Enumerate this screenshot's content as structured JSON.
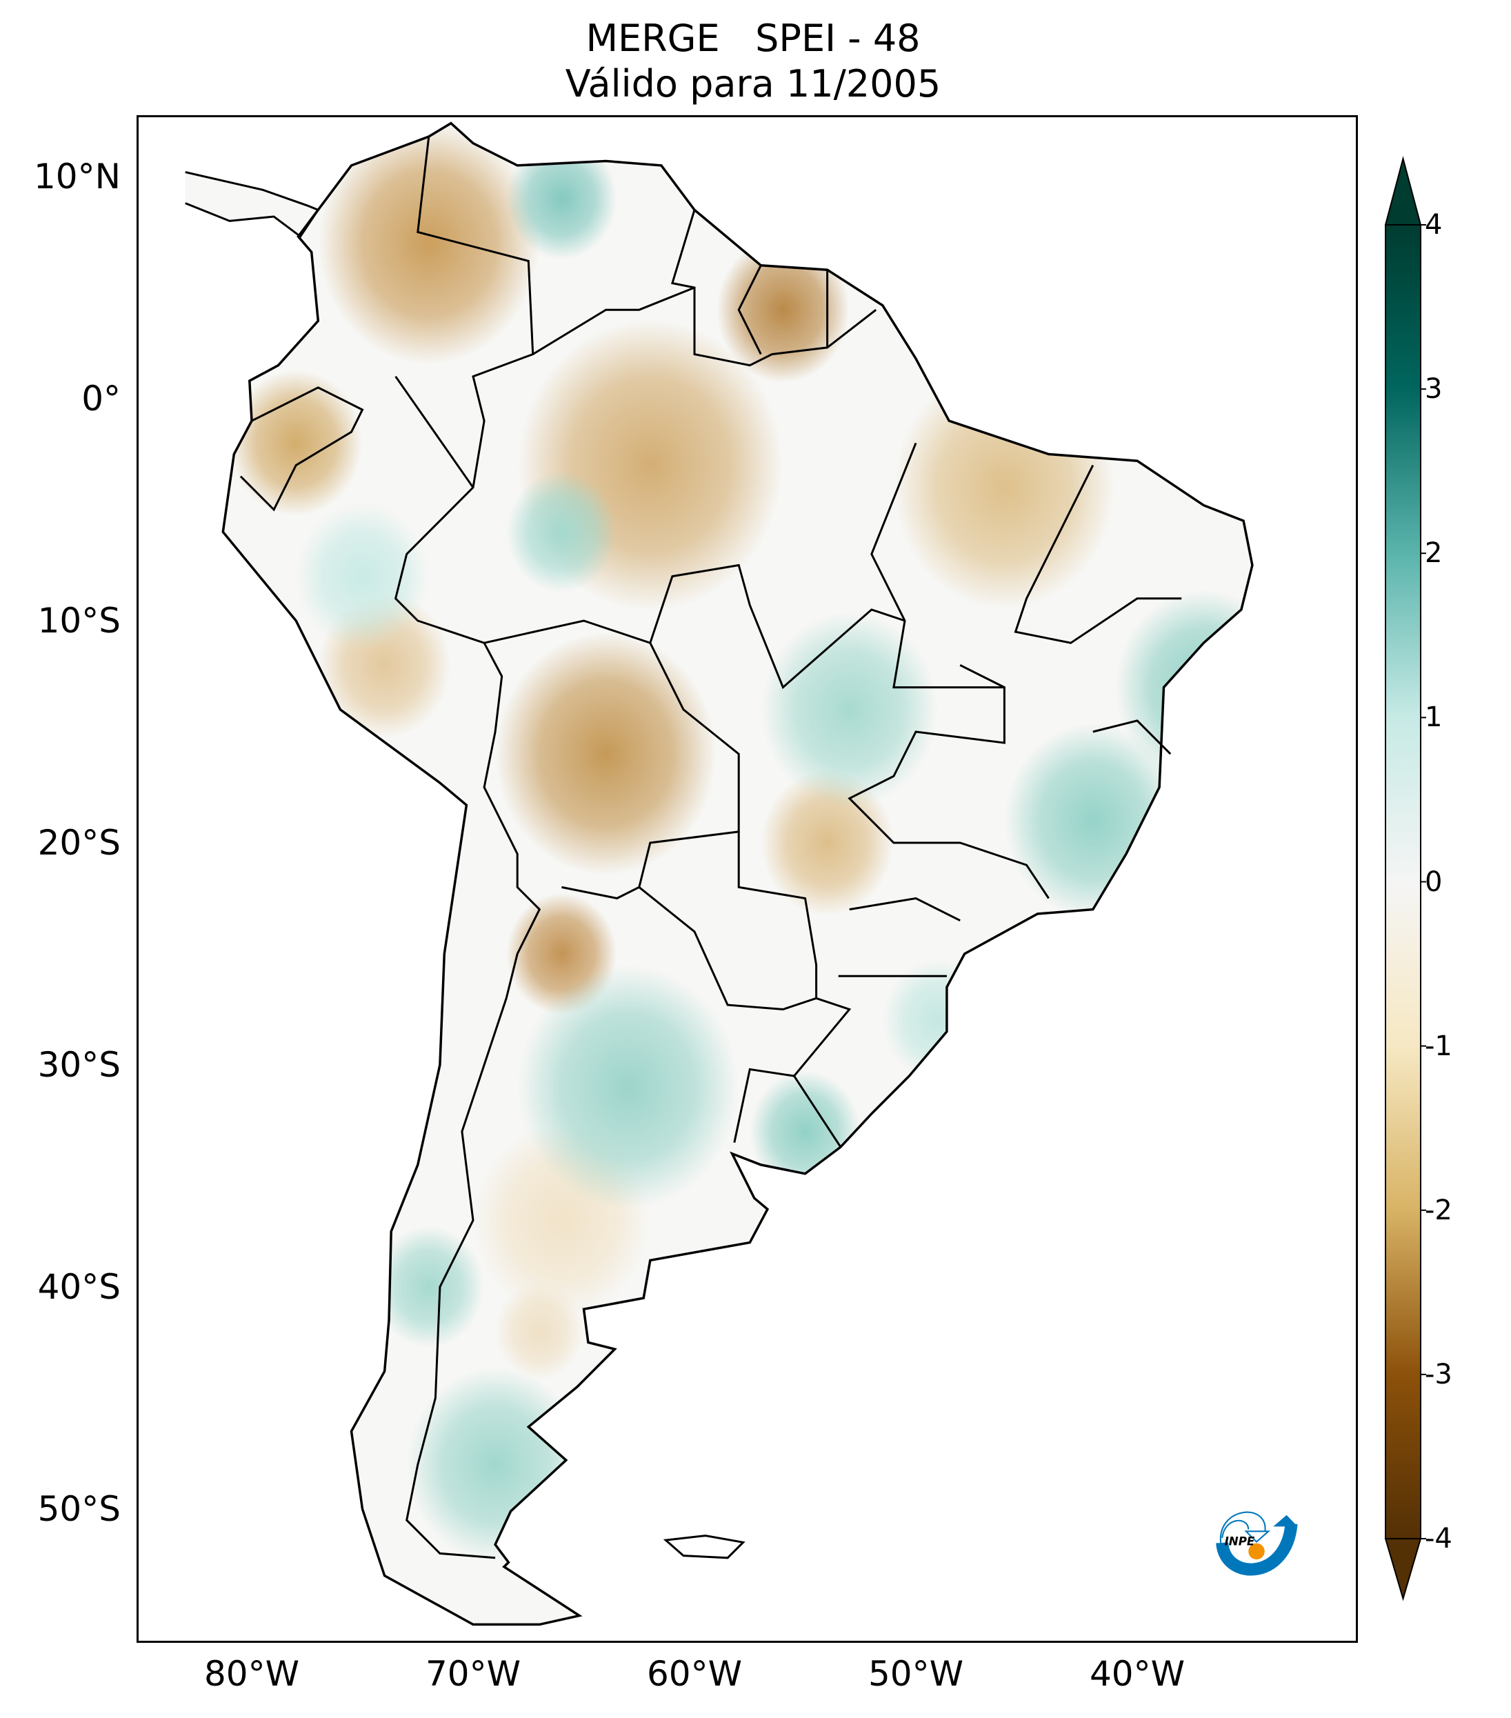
{
  "title": {
    "line1": "MERGE   SPEI - 48",
    "line2": "Válido para 11/2005"
  },
  "axes": {
    "lat_ticks": [
      {
        "label": "10°N",
        "lat": 10
      },
      {
        "label": "0°",
        "lat": 0
      },
      {
        "label": "10°S",
        "lat": -10
      },
      {
        "label": "20°S",
        "lat": -20
      },
      {
        "label": "30°S",
        "lat": -30
      },
      {
        "label": "40°S",
        "lat": -40
      },
      {
        "label": "50°S",
        "lat": -50
      }
    ],
    "lon_ticks": [
      {
        "label": "80°W",
        "lon": -80
      },
      {
        "label": "70°W",
        "lon": -70
      },
      {
        "label": "60°W",
        "lon": -60
      },
      {
        "label": "50°W",
        "lon": -50
      },
      {
        "label": "40°W",
        "lon": -40
      }
    ]
  },
  "colorbar": {
    "range": [
      -4,
      4
    ],
    "extend": "both",
    "ticks": [
      "4",
      "3",
      "2",
      "1",
      "0",
      "-1",
      "-2",
      "-3",
      "-4"
    ],
    "colors": [
      "#543005",
      "#8c510a",
      "#d8b365",
      "#f6e8c3",
      "#f5f5f5",
      "#c7eae5",
      "#5ab4ac",
      "#01665e",
      "#003c30"
    ]
  },
  "logo": {
    "text": "INPE",
    "blue": "#0077bb",
    "orange": "#f39200"
  }
}
